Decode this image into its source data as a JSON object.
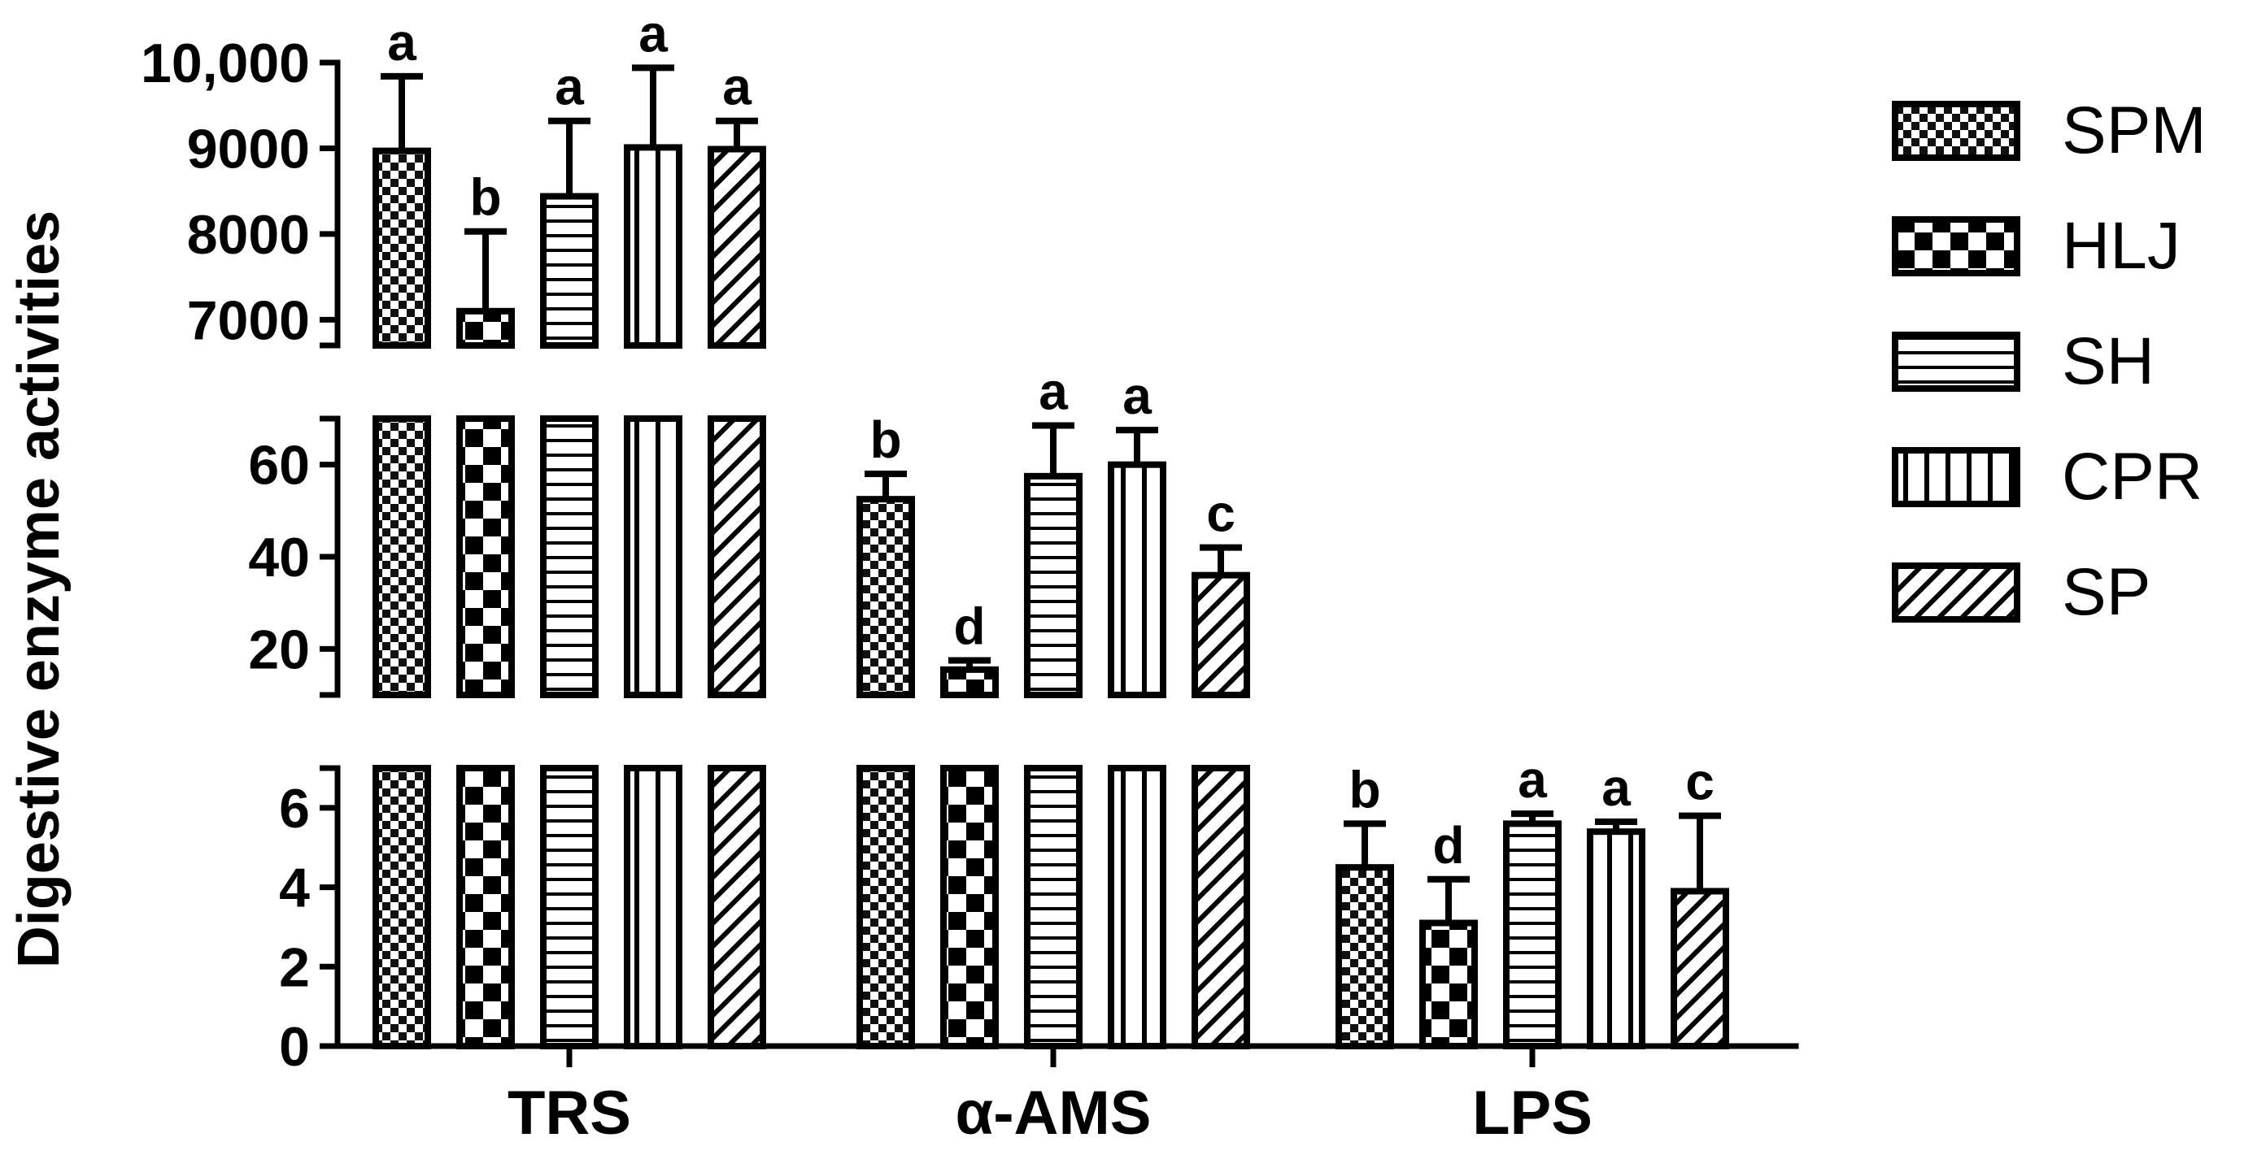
{
  "chart_data": {
    "type": "bar",
    "ylabel": "Digestive enzyme activities",
    "xlabel": "",
    "categories": [
      "TRS",
      "α-AMS",
      "LPS"
    ],
    "legend_position": "right",
    "y_axis_segments": [
      {
        "range": [
          6700,
          10000
        ],
        "ticks": [
          7000,
          8000,
          9000,
          10000
        ],
        "tick_labels": [
          "7000",
          "8000",
          "9000",
          "10,000"
        ]
      },
      {
        "range": [
          10,
          70
        ],
        "ticks": [
          20,
          40,
          60
        ],
        "tick_labels": [
          "20",
          "40",
          "60"
        ]
      },
      {
        "range": [
          0,
          7
        ],
        "ticks": [
          0,
          2,
          4,
          6
        ],
        "tick_labels": [
          "0",
          "2",
          "4",
          "6"
        ]
      }
    ],
    "series": [
      {
        "name": "SPM",
        "pattern": "checker-small",
        "values": [
          8970,
          52.5,
          4.5
        ],
        "errors": [
          870,
          5.5,
          1.1
        ],
        "letters": [
          "a",
          "b",
          "b"
        ]
      },
      {
        "name": "HLJ",
        "pattern": "checker-large",
        "values": [
          7100,
          15.5,
          3.1
        ],
        "errors": [
          930,
          2.0,
          1.1
        ],
        "letters": [
          "b",
          "d",
          "d"
        ]
      },
      {
        "name": "SH",
        "pattern": "horizontal",
        "values": [
          8440,
          57.5,
          5.6
        ],
        "errors": [
          880,
          11.0,
          0.25
        ],
        "letters": [
          "a",
          "a",
          "a"
        ]
      },
      {
        "name": "CPR",
        "pattern": "vertical",
        "values": [
          9010,
          60.0,
          5.4
        ],
        "errors": [
          930,
          7.5,
          0.25
        ],
        "letters": [
          "a",
          "a",
          "a"
        ]
      },
      {
        "name": "SP",
        "pattern": "diagonal",
        "values": [
          8990,
          36.0,
          3.9
        ],
        "errors": [
          330,
          6.0,
          1.9
        ],
        "letters": [
          "a",
          "c",
          "c"
        ]
      }
    ]
  }
}
